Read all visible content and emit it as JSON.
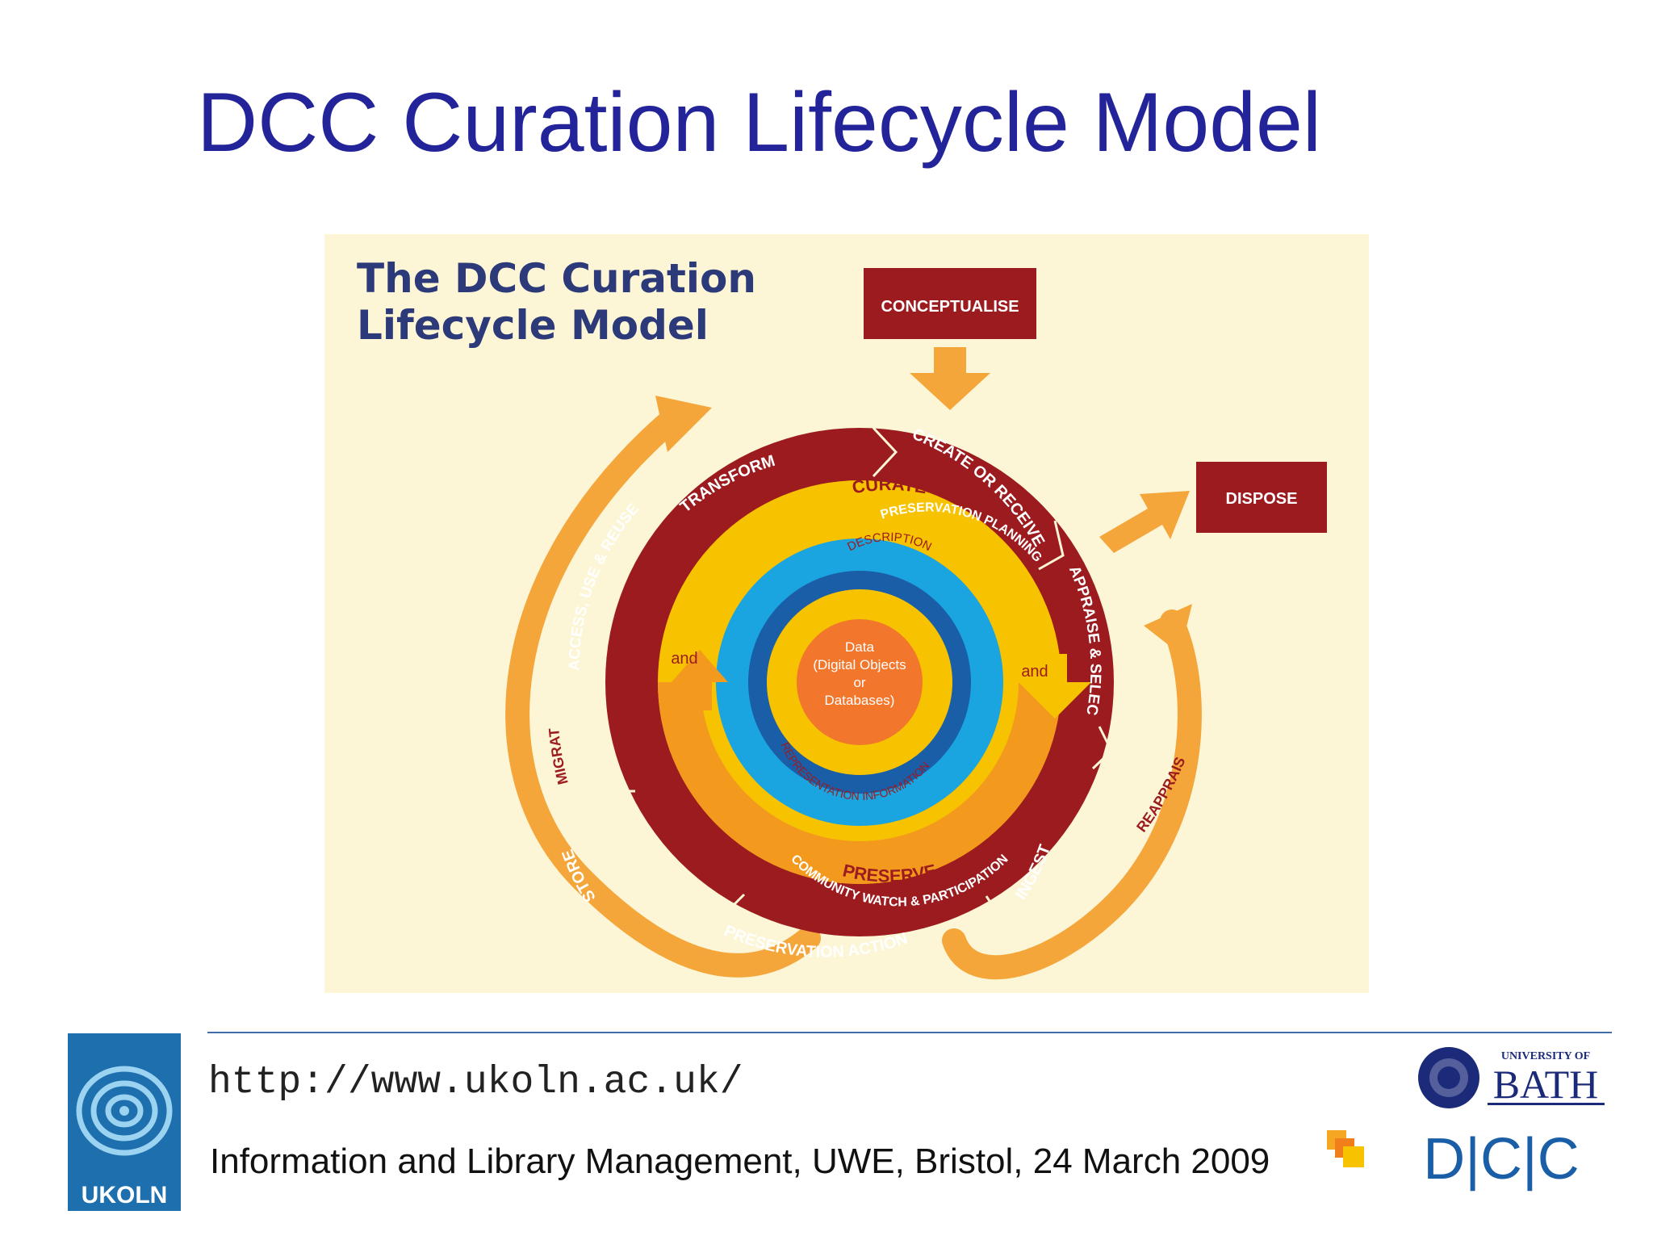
{
  "slide": {
    "title": "DCC Curation Lifecycle Model",
    "url": "http://www.ukoln.ac.uk/",
    "event": "Information and Library Management, UWE, Bristol, 24 March 2009"
  },
  "diagram": {
    "title_line1": "The DCC Curation",
    "title_line2": "Lifecycle Model",
    "boxes": {
      "conceptualise": "CONCEPTUALISE",
      "dispose": "DISPOSE"
    },
    "outer_ring": {
      "transform": "TRANSFORM",
      "create_or_receive": "CREATE OR RECEIVE",
      "appraise_select": "APPRAISE & SELECT",
      "ingest": "INGEST",
      "preservation_action": "PRESERVATION ACTION",
      "store": "STORE",
      "access_use_reuse": "ACCESS, USE & REUSE"
    },
    "curate": "CURATE",
    "preserve": "PRESERVE",
    "and_left": "and",
    "and_right": "and",
    "preservation_planning": "PRESERVATION PLANNING",
    "community_watch": "COMMUNITY WATCH & PARTICIPATION",
    "description": "DESCRIPTION",
    "representation_information": "REPRESENTATION INFORMATION",
    "core": {
      "line1": "Data",
      "line2": "(Digital Objects",
      "line3": "or",
      "line4": "Databases)"
    },
    "migrate": "MIGRATE",
    "reappraise": "REAPPRAISE"
  },
  "logos": {
    "ukoln": "UKOLN",
    "bath_small": "UNIVERSITY OF",
    "bath_big": "BATH",
    "dcc": "D|C|C"
  },
  "colors": {
    "title_blue": "#24249a",
    "background_cream": "#fdf6d6",
    "dark_red": "#9b1b1f",
    "gold": "#f7c200",
    "orange": "#f39a1e",
    "light_blue": "#1aa4e0",
    "dark_blue": "#1a5ea8",
    "core_orange": "#f2762b"
  }
}
